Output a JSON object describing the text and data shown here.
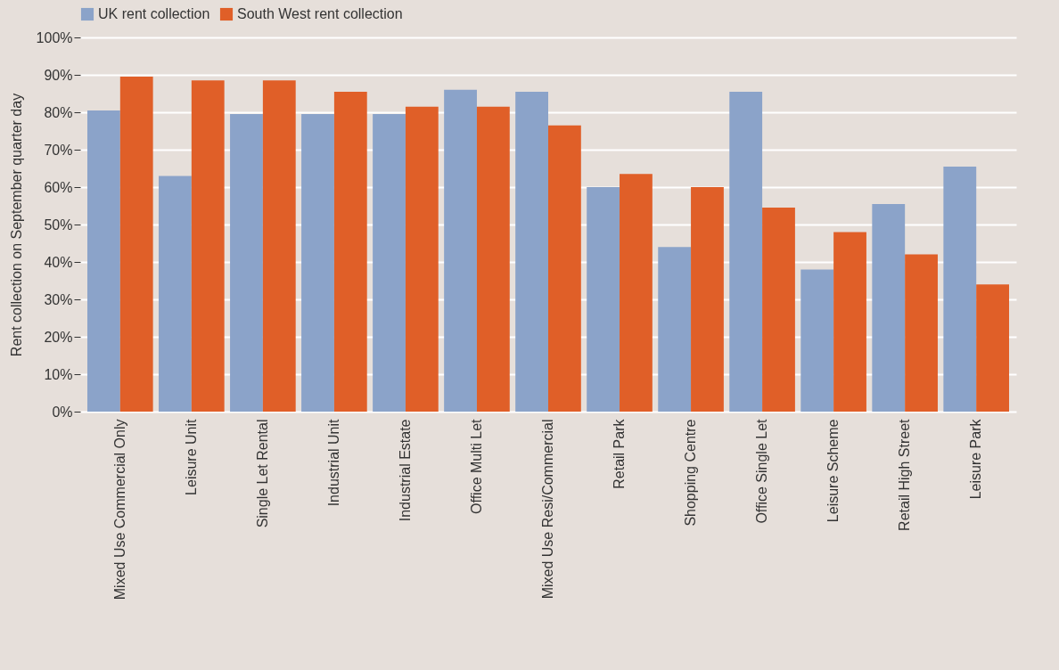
{
  "chart_data": {
    "type": "bar",
    "ylabel": "Rent collection on September quarter day",
    "categories": [
      "Mixed Use Commercial Only",
      "Leisure Unit",
      "Single Let Rental",
      "Industrial Unit",
      "Industrial Estate",
      "Office Multi Let",
      "Mixed Use Resi/Commercial",
      "Retail Park",
      "Shopping Centre",
      "Office Single Let",
      "Leisure Scheme",
      "Retail High Street",
      "Leisure Park"
    ],
    "series": [
      {
        "name": "UK rent collection",
        "color": "#8ba3c9",
        "values": [
          80.5,
          63,
          79.5,
          79.5,
          79.5,
          86,
          85.5,
          60,
          44,
          85.5,
          38,
          55.5,
          65.5
        ]
      },
      {
        "name": "South West rent collection",
        "color": "#e05f28",
        "values": [
          89.5,
          88.5,
          88.5,
          85.5,
          81.5,
          81.5,
          76.5,
          63.5,
          60,
          54.5,
          48,
          42,
          34
        ]
      }
    ],
    "ylim": [
      0,
      100
    ],
    "yticks": [
      {
        "value": 0,
        "label": "0%"
      },
      {
        "value": 10,
        "label": "10%"
      },
      {
        "value": 20,
        "label": "20%"
      },
      {
        "value": 30,
        "label": "30%"
      },
      {
        "value": 40,
        "label": "40%"
      },
      {
        "value": 50,
        "label": "50%"
      },
      {
        "value": 60,
        "label": "60%"
      },
      {
        "value": 70,
        "label": "70%"
      },
      {
        "value": 80,
        "label": "80%"
      },
      {
        "value": 90,
        "label": "90%"
      },
      {
        "value": 100,
        "label": "100%"
      }
    ],
    "grid": "y",
    "legend": "top"
  }
}
